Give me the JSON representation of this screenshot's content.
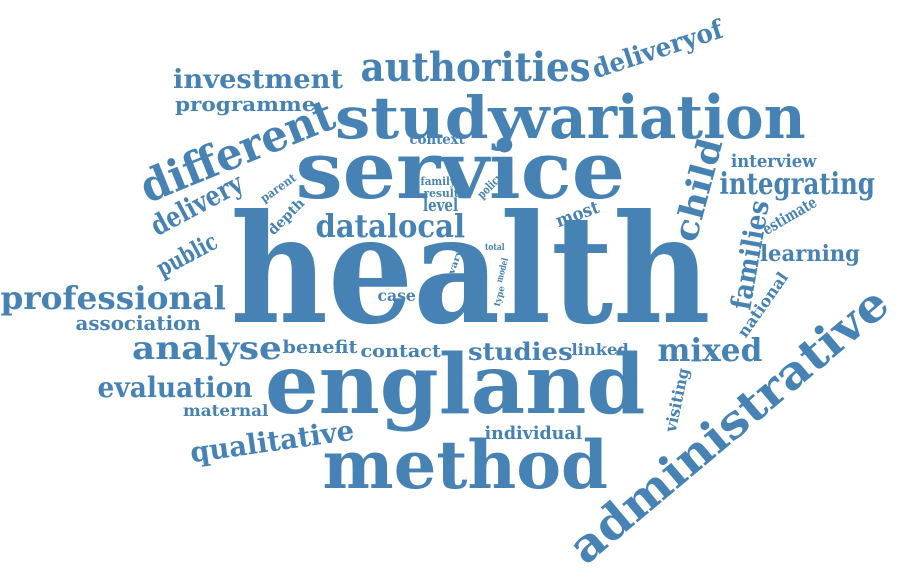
{
  "color": "#4682b4",
  "words": [
    "health",
    "service",
    "england",
    "method",
    "administrative",
    "study",
    "variation",
    "different",
    "authorities",
    "investment",
    "programme",
    "deliveryof",
    "delivery",
    "public",
    "professional",
    "association",
    "analyse",
    "evaluation",
    "maternal",
    "qualitative",
    "benefit",
    "contact",
    "studies",
    "linked",
    "mixed",
    "individual",
    "visiting",
    "national",
    "families",
    "learning",
    "estimate",
    "integrating",
    "interview",
    "child",
    "datalocal",
    "level",
    "depth",
    "parent",
    "context",
    "family",
    "result",
    "policy",
    "most",
    "total",
    "vary",
    "year",
    "model",
    "type",
    "case"
  ]
}
